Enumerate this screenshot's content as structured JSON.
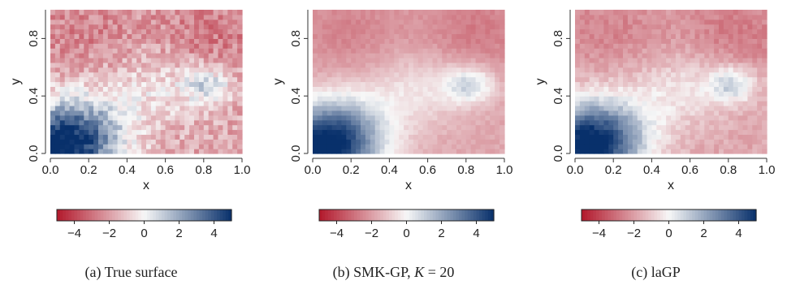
{
  "chart_data": [
    {
      "type": "heatmap",
      "caption": {
        "tag": "(a)",
        "text": "True surface"
      },
      "xlabel": "x",
      "ylabel": "y",
      "xlim": [
        0,
        1
      ],
      "ylim": [
        0,
        1
      ],
      "x_ticks": [
        "0.0",
        "0.2",
        "0.4",
        "0.6",
        "0.8",
        "1.0"
      ],
      "y_ticks": [
        "0.0",
        "0.4",
        "0.8"
      ],
      "colorbar": {
        "range": [
          -5,
          5
        ],
        "ticks": [
          "-4",
          "-2",
          "0",
          "2",
          "4"
        ],
        "low_color": "#b2182b",
        "mid_color": "#f7f7f7",
        "high_color": "#08306b"
      },
      "noise": 0.9,
      "surface": {
        "base": -1.8,
        "bumps": [
          {
            "x": 0.05,
            "y": 0.02,
            "value": 6.2,
            "sigma": 0.2
          },
          {
            "x": 0.15,
            "y": 0.2,
            "value": 2.2,
            "sigma": 0.18
          },
          {
            "x": 0.82,
            "y": 0.48,
            "value": 2.6,
            "sigma": 0.09
          },
          {
            "x": 0.55,
            "y": 0.45,
            "value": 1.3,
            "sigma": 0.18
          },
          {
            "x": 0.18,
            "y": 0.85,
            "value": -0.8,
            "sigma": 0.2
          },
          {
            "x": 0.85,
            "y": 0.85,
            "value": -1.0,
            "sigma": 0.2
          }
        ]
      }
    },
    {
      "type": "heatmap",
      "caption": {
        "tag": "(b)",
        "text": "SMK-GP,",
        "math": "K",
        "rest": " = 20"
      },
      "xlabel": "x",
      "ylabel": "y",
      "xlim": [
        0,
        1
      ],
      "ylim": [
        0,
        1
      ],
      "x_ticks": [
        "0.0",
        "0.2",
        "0.4",
        "0.6",
        "0.8",
        "1.0"
      ],
      "y_ticks": [
        "0.0",
        "0.4",
        "0.8"
      ],
      "colorbar": {
        "range": [
          -5,
          5
        ],
        "ticks": [
          "-4",
          "-2",
          "0",
          "2",
          "4"
        ],
        "low_color": "#b2182b",
        "mid_color": "#f7f7f7",
        "high_color": "#08306b"
      },
      "noise": 0.25,
      "surface": {
        "base": -1.8,
        "bumps": [
          {
            "x": 0.05,
            "y": 0.02,
            "value": 6.2,
            "sigma": 0.2
          },
          {
            "x": 0.15,
            "y": 0.2,
            "value": 2.2,
            "sigma": 0.18
          },
          {
            "x": 0.82,
            "y": 0.48,
            "value": 2.6,
            "sigma": 0.09
          },
          {
            "x": 0.55,
            "y": 0.45,
            "value": 1.3,
            "sigma": 0.18
          },
          {
            "x": 0.18,
            "y": 0.85,
            "value": -0.8,
            "sigma": 0.2
          },
          {
            "x": 0.85,
            "y": 0.85,
            "value": -1.0,
            "sigma": 0.2
          }
        ]
      }
    },
    {
      "type": "heatmap",
      "caption": {
        "tag": "(c)",
        "text": "laGP"
      },
      "xlabel": "x",
      "ylabel": "y",
      "xlim": [
        0,
        1
      ],
      "ylim": [
        0,
        1
      ],
      "x_ticks": [
        "0.0",
        "0.2",
        "0.4",
        "0.6",
        "0.8",
        "1.0"
      ],
      "y_ticks": [
        "0.0",
        "0.4",
        "0.8"
      ],
      "colorbar": {
        "range": [
          -5,
          5
        ],
        "ticks": [
          "-4",
          "-2",
          "0",
          "2",
          "4"
        ],
        "low_color": "#b2182b",
        "mid_color": "#f7f7f7",
        "high_color": "#08306b"
      },
      "noise": 0.4,
      "surface": {
        "base": -1.8,
        "bumps": [
          {
            "x": 0.05,
            "y": 0.02,
            "value": 6.2,
            "sigma": 0.2
          },
          {
            "x": 0.15,
            "y": 0.2,
            "value": 2.2,
            "sigma": 0.18
          },
          {
            "x": 0.82,
            "y": 0.48,
            "value": 2.6,
            "sigma": 0.09
          },
          {
            "x": 0.55,
            "y": 0.45,
            "value": 1.3,
            "sigma": 0.18
          },
          {
            "x": 0.18,
            "y": 0.85,
            "value": -0.8,
            "sigma": 0.2
          },
          {
            "x": 0.85,
            "y": 0.85,
            "value": -1.0,
            "sigma": 0.2
          }
        ]
      }
    }
  ]
}
